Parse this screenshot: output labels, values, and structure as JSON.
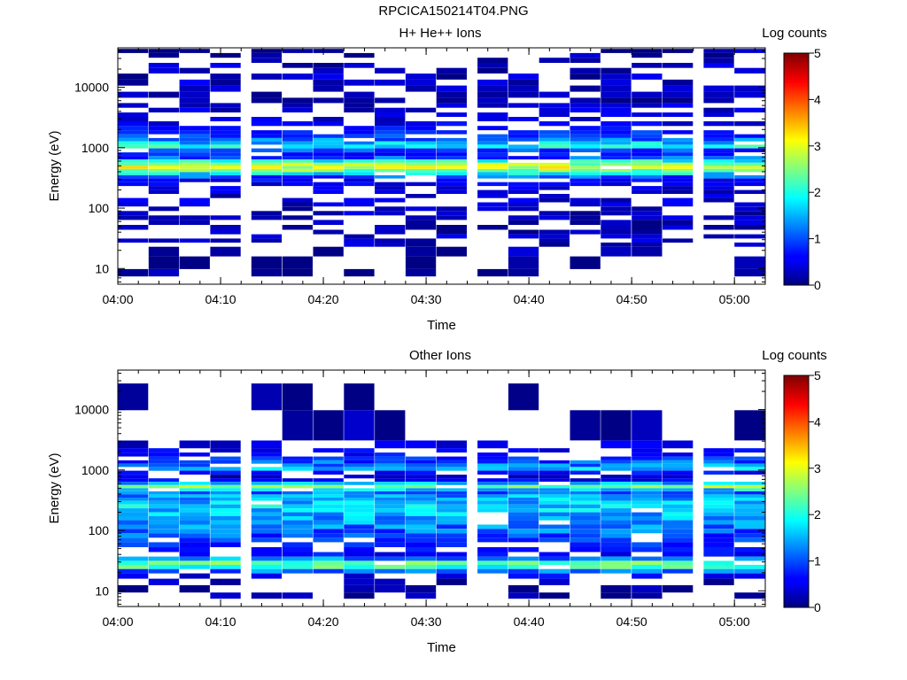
{
  "title": "RPCICA150214T04.PNG",
  "chart_data": [
    {
      "type": "heatmap",
      "title": "H+ He++ Ions",
      "xlabel": "Time",
      "ylabel": "Energy (eV)",
      "y_scale": "log",
      "ylim": [
        5.5,
        45000
      ],
      "xlim": [
        "04:00",
        "05:03"
      ],
      "x_ticks": [
        "04:00",
        "04:10",
        "04:20",
        "04:30",
        "04:40",
        "04:50",
        "05:00"
      ],
      "y_ticks": [
        "10",
        "100",
        "1000",
        "10000"
      ],
      "colorbar": {
        "label": "Log counts",
        "range": [
          0,
          5
        ],
        "ticks": [
          "0",
          "1",
          "2",
          "3",
          "4",
          "5"
        ]
      },
      "time_bins": [
        "04:00",
        "04:03",
        "04:06",
        "04:09",
        "04:13",
        "04:16",
        "04:19",
        "04:22",
        "04:25",
        "04:28",
        "04:31",
        "04:35",
        "04:38",
        "04:41",
        "04:44",
        "04:47",
        "04:50",
        "04:53",
        "04:57",
        "05:00"
      ],
      "profile": [
        {
          "e": 40000,
          "v": 0.15
        },
        {
          "e": 34000,
          "v": 0.15
        },
        {
          "e": 28000,
          "v": 0.2
        },
        {
          "e": 23000,
          "v": 0.25
        },
        {
          "e": 19000,
          "v": 0.2
        },
        {
          "e": 15000,
          "v": 0.25
        },
        {
          "e": 12000,
          "v": 0.3
        },
        {
          "e": 9500,
          "v": 0.2
        },
        {
          "e": 7500,
          "v": 0.2
        },
        {
          "e": 6000,
          "v": 0.2
        },
        {
          "e": 5000,
          "v": 0.3
        },
        {
          "e": 4200,
          "v": 0.35
        },
        {
          "e": 3500,
          "v": 0.4
        },
        {
          "e": 3000,
          "v": 0.45
        },
        {
          "e": 2500,
          "v": 0.5
        },
        {
          "e": 2100,
          "v": 0.6
        },
        {
          "e": 1800,
          "v": 0.8
        },
        {
          "e": 1550,
          "v": 0.9
        },
        {
          "e": 1350,
          "v": 1.2
        },
        {
          "e": 1200,
          "v": 1.6
        },
        {
          "e": 1050,
          "v": 1.9
        },
        {
          "e": 900,
          "v": 1.0
        },
        {
          "e": 780,
          "v": 0.7
        },
        {
          "e": 680,
          "v": 1.0
        },
        {
          "e": 600,
          "v": 2.0
        },
        {
          "e": 530,
          "v": 2.6
        },
        {
          "e": 470,
          "v": 2.9
        },
        {
          "e": 420,
          "v": 2.5
        },
        {
          "e": 370,
          "v": 1.8
        },
        {
          "e": 330,
          "v": 1.0
        },
        {
          "e": 290,
          "v": 0.6
        },
        {
          "e": 250,
          "v": 0.5
        },
        {
          "e": 215,
          "v": 0.4
        },
        {
          "e": 185,
          "v": 0.35
        },
        {
          "e": 160,
          "v": 0.3
        },
        {
          "e": 135,
          "v": 0.35
        },
        {
          "e": 115,
          "v": 0.3
        },
        {
          "e": 98,
          "v": 0.3
        },
        {
          "e": 82,
          "v": 0.25
        },
        {
          "e": 70,
          "v": 0.25
        },
        {
          "e": 58,
          "v": 0.2
        },
        {
          "e": 48,
          "v": 0.25
        },
        {
          "e": 40,
          "v": 0.2
        },
        {
          "e": 34,
          "v": 0.3
        },
        {
          "e": 29,
          "v": 0.3
        },
        {
          "e": 25,
          "v": 0.3
        },
        {
          "e": 21,
          "v": 0.15
        },
        {
          "e": 12,
          "v": 0.1
        },
        {
          "e": 8,
          "v": 0.08
        }
      ]
    },
    {
      "type": "heatmap",
      "title": "Other Ions",
      "xlabel": "Time",
      "ylabel": "Energy (eV)",
      "y_scale": "log",
      "ylim": [
        5.5,
        45000
      ],
      "xlim": [
        "04:00",
        "05:03"
      ],
      "x_ticks": [
        "04:00",
        "04:10",
        "04:20",
        "04:30",
        "04:40",
        "04:50",
        "05:00"
      ],
      "y_ticks": [
        "10",
        "100",
        "1000",
        "10000"
      ],
      "colorbar": {
        "label": "Log counts",
        "range": [
          0,
          5
        ],
        "ticks": [
          "0",
          "1",
          "2",
          "3",
          "4",
          "5"
        ]
      },
      "time_bins": [
        "04:00",
        "04:03",
        "04:06",
        "04:09",
        "04:13",
        "04:16",
        "04:19",
        "04:22",
        "04:25",
        "04:28",
        "04:31",
        "04:35",
        "04:38",
        "04:41",
        "04:44",
        "04:47",
        "04:50",
        "04:53",
        "04:57",
        "05:00"
      ],
      "profile": [
        {
          "e": 25000,
          "v": 0.05
        },
        {
          "e": 3800,
          "v": 0.1
        },
        {
          "e": 2500,
          "v": 0.4
        },
        {
          "e": 2100,
          "v": 0.5
        },
        {
          "e": 1800,
          "v": 0.6
        },
        {
          "e": 1550,
          "v": 0.8
        },
        {
          "e": 1350,
          "v": 1.0
        },
        {
          "e": 1200,
          "v": 1.3
        },
        {
          "e": 1050,
          "v": 1.6
        },
        {
          "e": 900,
          "v": 0.6
        },
        {
          "e": 780,
          "v": 0.3
        },
        {
          "e": 680,
          "v": 0.5
        },
        {
          "e": 600,
          "v": 1.5
        },
        {
          "e": 530,
          "v": 2.5
        },
        {
          "e": 470,
          "v": 1.7
        },
        {
          "e": 420,
          "v": 1.2
        },
        {
          "e": 370,
          "v": 1.4
        },
        {
          "e": 330,
          "v": 1.5
        },
        {
          "e": 290,
          "v": 1.6
        },
        {
          "e": 250,
          "v": 1.7
        },
        {
          "e": 215,
          "v": 1.6
        },
        {
          "e": 185,
          "v": 1.5
        },
        {
          "e": 160,
          "v": 1.4
        },
        {
          "e": 135,
          "v": 1.3
        },
        {
          "e": 115,
          "v": 1.2
        },
        {
          "e": 98,
          "v": 1.1
        },
        {
          "e": 82,
          "v": 1.0
        },
        {
          "e": 70,
          "v": 0.9
        },
        {
          "e": 58,
          "v": 0.8
        },
        {
          "e": 48,
          "v": 0.7
        },
        {
          "e": 40,
          "v": 0.6
        },
        {
          "e": 34,
          "v": 1.3
        },
        {
          "e": 29,
          "v": 2.3
        },
        {
          "e": 25,
          "v": 2.1
        },
        {
          "e": 21,
          "v": 1.2
        },
        {
          "e": 18,
          "v": 0.5
        },
        {
          "e": 14,
          "v": 0.2
        },
        {
          "e": 11,
          "v": 0.15
        },
        {
          "e": 8,
          "v": 0.1
        }
      ]
    }
  ]
}
